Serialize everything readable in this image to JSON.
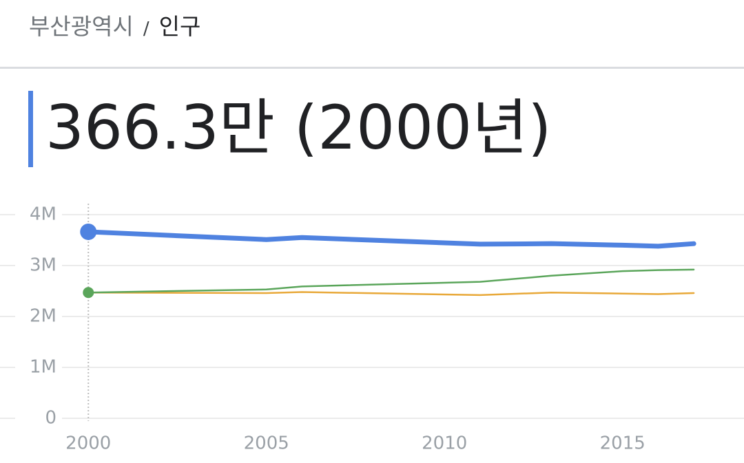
{
  "breadcrumb": {
    "parent": "부산광역시",
    "separator": "/",
    "current": "인구"
  },
  "headline": "366.3만 (2000년)",
  "chart_data": {
    "type": "line",
    "x": [
      2000,
      2005,
      2006,
      2011,
      2013,
      2015,
      2016,
      2017
    ],
    "series": [
      {
        "color": "#4f82e0",
        "values": [
          3663000,
          3510000,
          3550000,
          3420000,
          3430000,
          3400000,
          3380000,
          3430000
        ]
      },
      {
        "color": "#5aa55a",
        "values": [
          2470000,
          2530000,
          2590000,
          2680000,
          2800000,
          2890000,
          2910000,
          2920000
        ]
      },
      {
        "color": "#e8a838",
        "values": [
          2470000,
          2460000,
          2480000,
          2420000,
          2470000,
          2450000,
          2440000,
          2460000
        ]
      }
    ],
    "xlim": [
      1999.26,
      2018.41
    ],
    "xticks": [
      2000,
      2005,
      2010,
      2015
    ],
    "ylim": [
      0,
      4000000
    ],
    "yticks": [
      {
        "value": 0,
        "label": "0"
      },
      {
        "value": 1000000,
        "label": "1M"
      },
      {
        "value": 2000000,
        "label": "2M"
      },
      {
        "value": 3000000,
        "label": "3M"
      },
      {
        "value": 4000000,
        "label": "4M"
      }
    ],
    "grid": true,
    "highlight_x": 2000
  }
}
